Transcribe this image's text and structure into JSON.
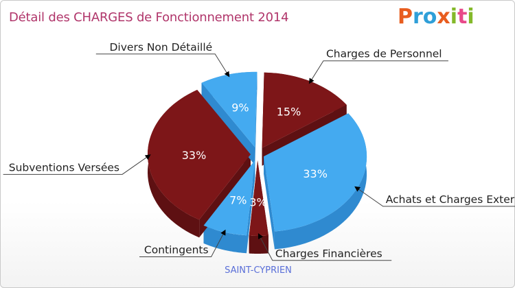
{
  "header": {
    "title": "Détail des CHARGES de Fonctionnement 2014",
    "logo_text": "Proxiti",
    "logo_colors": [
      "#e85d1f",
      "#2f9fd8",
      "#2f9fd8",
      "#e85d1f",
      "#84b92a",
      "#e84a8a",
      "#84b92a"
    ]
  },
  "footer": {
    "commune": "SAINT-CYPRIEN"
  },
  "colors": {
    "dark_red": "#7d1618",
    "dark_red_side": "#5e1012",
    "blue": "#44aaf0",
    "blue_side": "#2f8ad0",
    "title": "#b0356a",
    "commune": "#5a6fd8"
  },
  "chart_data": {
    "type": "pie",
    "title": "Détail des CHARGES de Fonctionnement 2014",
    "style": "3d-exploded",
    "slices": [
      {
        "name": "Charges de Personnel",
        "value": 15,
        "label": "15%",
        "color": "#7d1618"
      },
      {
        "name": "Achats et Charges Externes",
        "value": 33,
        "label": "33%",
        "color": "#44aaf0"
      },
      {
        "name": "Charges Financières",
        "value": 3,
        "label": "3%",
        "color": "#7d1618"
      },
      {
        "name": "Contingents",
        "value": 7,
        "label": "7%",
        "color": "#44aaf0"
      },
      {
        "name": "Subventions Versées",
        "value": 33,
        "label": "33%",
        "color": "#7d1618"
      },
      {
        "name": "Divers Non Détaillé",
        "value": 9,
        "label": "9%",
        "color": "#44aaf0"
      }
    ]
  }
}
